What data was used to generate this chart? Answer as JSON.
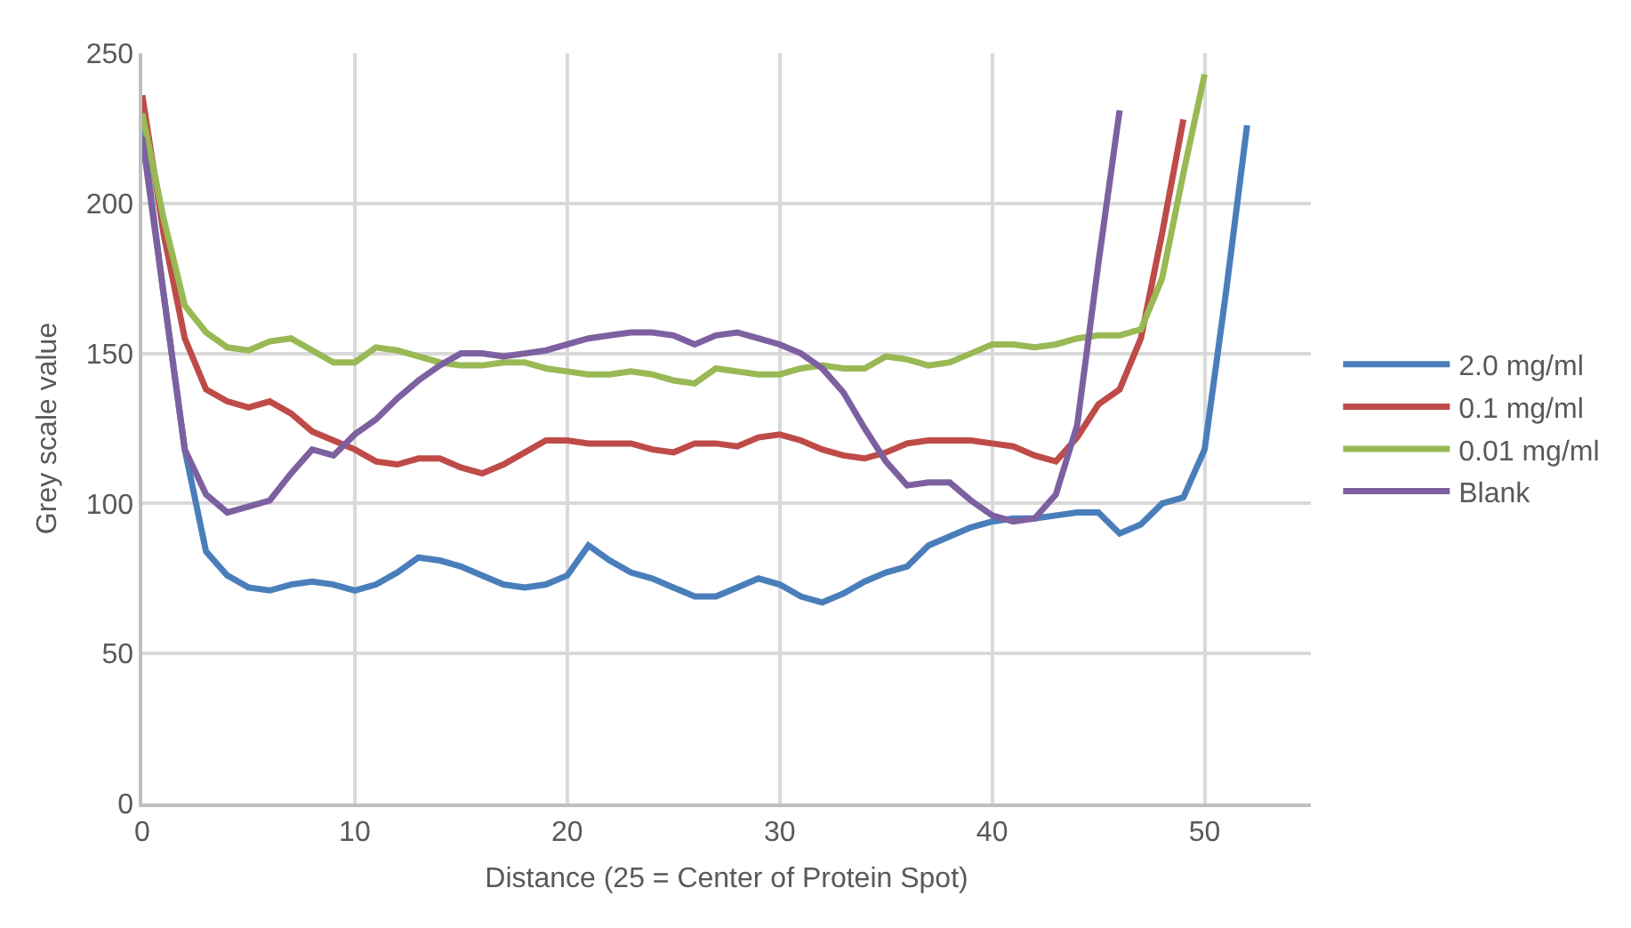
{
  "chart_data": {
    "type": "line",
    "xlabel": "Distance (25 = Center of Protein Spot)",
    "ylabel": "Grey scale value",
    "xlim": [
      0,
      55
    ],
    "xticks": [
      0,
      10,
      20,
      30,
      40,
      50
    ],
    "ylim": [
      0,
      250
    ],
    "yticks": [
      0,
      50,
      100,
      150,
      200,
      250
    ],
    "grid": true,
    "legend": "right",
    "marker": "none",
    "line_style": "solid",
    "series": [
      {
        "name": "2.0 mg/ml",
        "color": "#4a7ebb",
        "x": [
          0,
          1,
          2,
          3,
          4,
          5,
          6,
          7,
          8,
          9,
          10,
          11,
          12,
          13,
          14,
          15,
          16,
          17,
          18,
          19,
          20,
          21,
          22,
          23,
          24,
          25,
          26,
          27,
          28,
          29,
          30,
          31,
          32,
          33,
          34,
          35,
          36,
          37,
          38,
          39,
          40,
          41,
          42,
          43,
          44,
          45,
          46,
          47,
          48,
          49,
          50,
          51,
          52
        ],
        "values": [
          225,
          170,
          118,
          84,
          76,
          72,
          71,
          73,
          74,
          73,
          71,
          73,
          77,
          82,
          81,
          79,
          76,
          73,
          72,
          73,
          76,
          86,
          81,
          77,
          75,
          72,
          69,
          69,
          72,
          75,
          73,
          69,
          67,
          70,
          74,
          77,
          79,
          86,
          89,
          92,
          94,
          95,
          95,
          96,
          97,
          97,
          90,
          93,
          100,
          102,
          118,
          170,
          226
        ]
      },
      {
        "name": "0.1 mg/ml",
        "color": "#be4b48",
        "x": [
          0,
          1,
          2,
          3,
          4,
          5,
          6,
          7,
          8,
          9,
          10,
          11,
          12,
          13,
          14,
          15,
          16,
          17,
          18,
          19,
          20,
          21,
          22,
          23,
          24,
          25,
          26,
          27,
          28,
          29,
          30,
          31,
          32,
          33,
          34,
          35,
          36,
          37,
          38,
          39,
          40,
          41,
          42,
          43,
          44,
          45,
          46,
          47,
          48,
          49
        ],
        "values": [
          236,
          190,
          155,
          138,
          134,
          132,
          134,
          130,
          124,
          121,
          118,
          114,
          113,
          115,
          115,
          112,
          110,
          113,
          117,
          121,
          121,
          120,
          120,
          120,
          118,
          117,
          120,
          120,
          119,
          122,
          123,
          121,
          118,
          116,
          115,
          117,
          120,
          121,
          121,
          121,
          120,
          119,
          116,
          114,
          122,
          133,
          138,
          155,
          190,
          228
        ]
      },
      {
        "name": "0.01 mg/ml",
        "color": "#98b954",
        "x": [
          0,
          1,
          2,
          3,
          4,
          5,
          6,
          7,
          8,
          9,
          10,
          11,
          12,
          13,
          14,
          15,
          16,
          17,
          18,
          19,
          20,
          21,
          22,
          23,
          24,
          25,
          26,
          27,
          28,
          29,
          30,
          31,
          32,
          33,
          34,
          35,
          36,
          37,
          38,
          39,
          40,
          41,
          42,
          43,
          44,
          45,
          46,
          47,
          48,
          49,
          50
        ],
        "values": [
          230,
          195,
          166,
          157,
          152,
          151,
          154,
          155,
          151,
          147,
          147,
          152,
          151,
          149,
          147,
          146,
          146,
          147,
          147,
          145,
          144,
          143,
          143,
          144,
          143,
          141,
          140,
          145,
          144,
          143,
          143,
          145,
          146,
          145,
          145,
          149,
          148,
          146,
          147,
          150,
          153,
          153,
          152,
          153,
          155,
          156,
          156,
          158,
          175,
          210,
          243
        ]
      },
      {
        "name": "Blank",
        "color": "#7d60a0",
        "x": [
          0,
          1,
          2,
          3,
          4,
          5,
          6,
          7,
          8,
          9,
          10,
          11,
          12,
          13,
          14,
          15,
          16,
          17,
          18,
          19,
          20,
          21,
          22,
          23,
          24,
          25,
          26,
          27,
          28,
          29,
          30,
          31,
          32,
          33,
          34,
          35,
          36,
          37,
          38,
          39,
          40,
          41,
          42,
          43,
          44,
          45,
          46
        ],
        "values": [
          222,
          170,
          118,
          103,
          97,
          99,
          101,
          110,
          118,
          116,
          123,
          128,
          135,
          141,
          146,
          150,
          150,
          149,
          150,
          151,
          153,
          155,
          156,
          157,
          157,
          156,
          153,
          156,
          157,
          155,
          153,
          150,
          145,
          137,
          125,
          114,
          106,
          107,
          107,
          101,
          96,
          94,
          95,
          103,
          126,
          180,
          231
        ]
      }
    ]
  }
}
